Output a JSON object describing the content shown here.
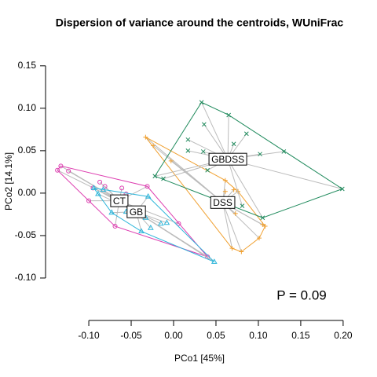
{
  "chart_data": {
    "type": "scatter",
    "title": "Dispersion of variance around the centroids, WUniFrac",
    "x_label": "PCo1 [45%]",
    "y_label": "PCo2 [14.1%]",
    "annotation": "P = 0.09",
    "xlim": [
      -0.151,
      0.214
    ],
    "ylim": [
      -0.15,
      0.16
    ],
    "xticks": [
      {
        "value": -0.1,
        "label": "-0.10"
      },
      {
        "value": -0.05,
        "label": "-0.05"
      },
      {
        "value": 0,
        "label": "0.00"
      },
      {
        "value": 0.05,
        "label": "0.05"
      },
      {
        "value": 0.1,
        "label": "0.10"
      },
      {
        "value": 0.15,
        "label": "0.15"
      },
      {
        "value": 0.2,
        "label": "0.20"
      }
    ],
    "yticks": [
      {
        "value": -0.1,
        "label": "-0.10"
      },
      {
        "value": -0.05,
        "label": "-0.05"
      },
      {
        "value": 0,
        "label": "0.00"
      },
      {
        "value": 0.05,
        "label": "0.05"
      },
      {
        "value": 0.1,
        "label": "0.10"
      },
      {
        "value": 0.15,
        "label": "0.15"
      }
    ],
    "series": [
      {
        "name": "CT",
        "color": "#DD3DB0",
        "marker": "circle",
        "x": [
          -0.133,
          -0.137,
          -0.124,
          -0.1,
          -0.087,
          -0.081,
          -0.061,
          -0.031,
          -0.069,
          0.006,
          0.04,
          -0.056,
          -0.095
        ],
        "values": [
          0.032,
          0.027,
          0.026,
          -0.009,
          0.013,
          0.008,
          0.006,
          0.008,
          -0.039,
          -0.036,
          -0.075,
          -0.001,
          0.006
        ],
        "centroid": [
          -0.064,
          -0.009
        ]
      },
      {
        "name": "GB",
        "color": "#2CB5DA",
        "marker": "triangle",
        "x": [
          -0.094,
          -0.089,
          -0.083,
          -0.03,
          -0.073,
          -0.038,
          -0.027,
          -0.015,
          -0.008,
          -0.033,
          0.048,
          -0.056
        ],
        "values": [
          0.006,
          -0.001,
          0.004,
          -0.004,
          -0.023,
          -0.045,
          -0.041,
          -0.036,
          -0.035,
          -0.029,
          -0.081,
          -0.022
        ],
        "centroid": [
          -0.044,
          -0.022
        ]
      },
      {
        "name": "DSS",
        "color": "#F0A030",
        "marker": "plus",
        "x": [
          -0.033,
          -0.024,
          -0.003,
          0.061,
          0.061,
          0.071,
          0.076,
          0.073,
          0.069,
          0.08,
          0.101,
          0.108,
          0.105
        ],
        "values": [
          0.066,
          0.056,
          0.038,
          0.015,
          0.002,
          0.004,
          0.002,
          -0.024,
          -0.065,
          -0.069,
          -0.053,
          -0.039,
          -0.037
        ],
        "centroid": [
          0.058,
          -0.011
        ]
      },
      {
        "name": "GBDSS",
        "color": "#1F8A5C",
        "marker": "x",
        "x": [
          0.033,
          0.065,
          0.036,
          0.017,
          0.017,
          0.035,
          0.071,
          0.086,
          0.102,
          0.13,
          0.199,
          0.105,
          0.081,
          -0.012,
          -0.022,
          0.04
        ],
        "values": [
          0.107,
          0.092,
          0.081,
          0.063,
          0.05,
          0.049,
          0.058,
          0.07,
          0.046,
          0.049,
          0.005,
          -0.029,
          -0.015,
          0.017,
          0.02,
          0.027
        ],
        "centroid": [
          0.064,
          0.04
        ]
      }
    ]
  }
}
